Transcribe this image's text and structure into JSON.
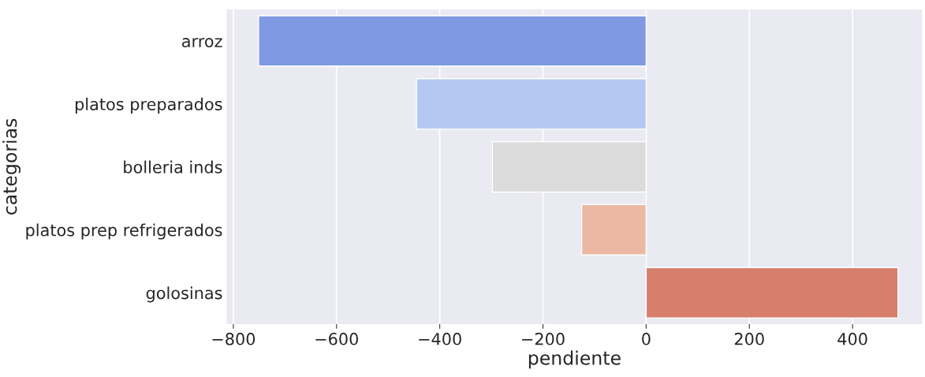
{
  "chart_data": {
    "type": "bar",
    "orientation": "horizontal",
    "xlabel": "pendiente",
    "ylabel": "categorias",
    "categories": [
      "arroz",
      "platos preparados",
      "bolleria inds",
      "platos prep refrigerados",
      "golosinas"
    ],
    "values": [
      -751,
      -445,
      -298,
      -125,
      488
    ],
    "colors": [
      "#7f99e2",
      "#b4c8f2",
      "#dbdbdb",
      "#ebb9a3",
      "#d67f6c"
    ],
    "xlim": [
      -813,
      535
    ],
    "xticks": [
      {
        "value": -800,
        "label": "−800"
      },
      {
        "value": -600,
        "label": "−600"
      },
      {
        "value": -400,
        "label": "−400"
      },
      {
        "value": -200,
        "label": "−200"
      },
      0,
      200,
      400
    ],
    "grid": "x"
  }
}
